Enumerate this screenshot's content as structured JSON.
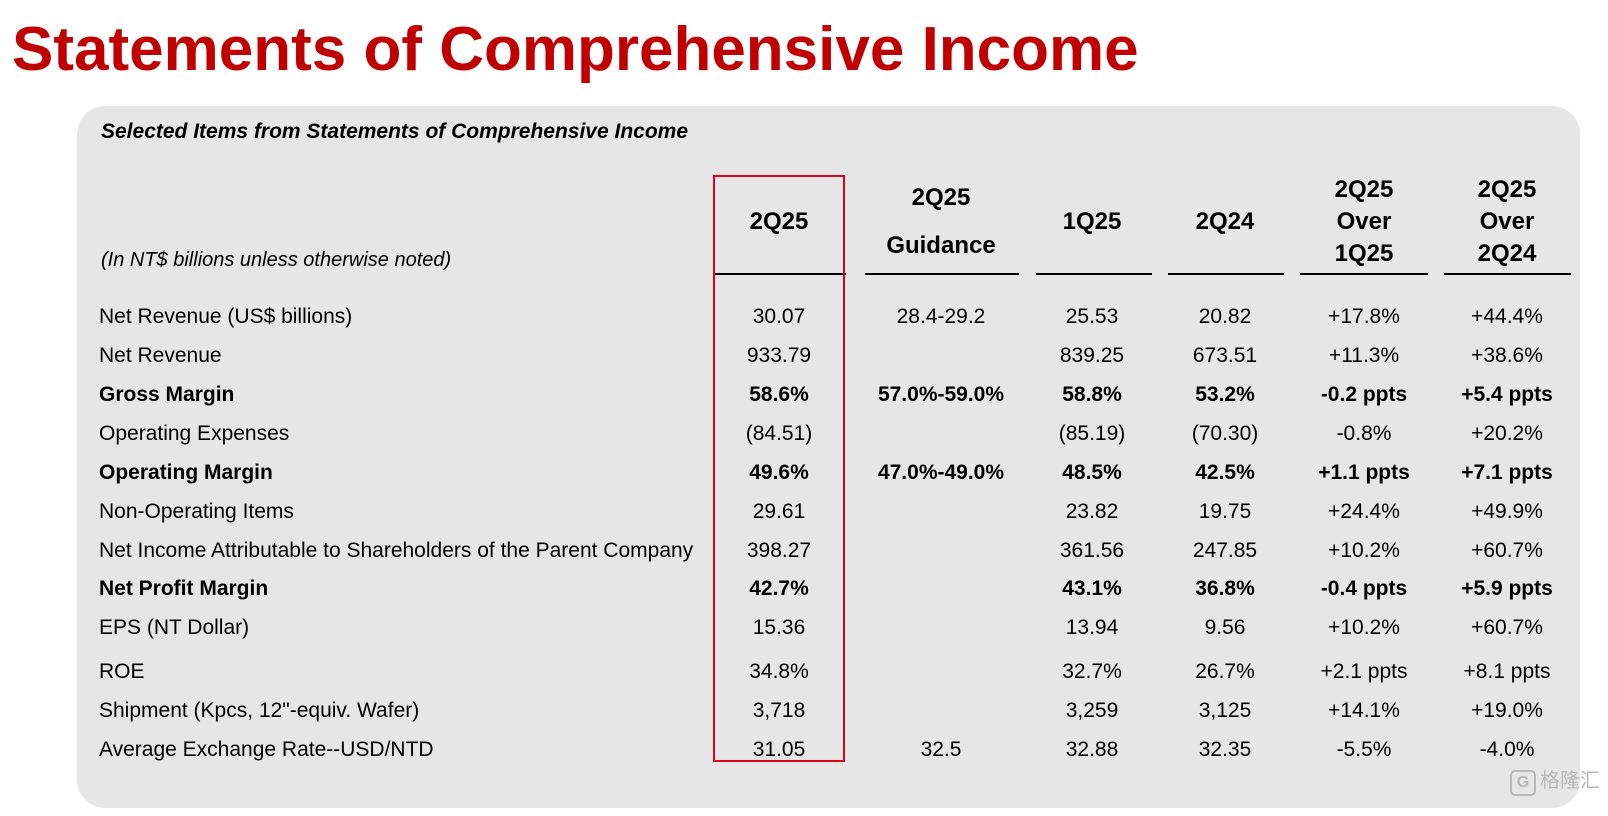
{
  "title": "Statements of Comprehensive Income",
  "subtitle": "Selected Items from Statements of Comprehensive Income",
  "units_note": "(In NT$ billions unless otherwise noted)",
  "columns": [
    {
      "lines": [
        "2Q25"
      ]
    },
    {
      "lines": [
        "2Q25",
        "Guidance"
      ]
    },
    {
      "lines": [
        "1Q25"
      ]
    },
    {
      "lines": [
        "2Q24"
      ]
    },
    {
      "lines": [
        "2Q25",
        "Over",
        "1Q25"
      ]
    },
    {
      "lines": [
        "2Q25",
        "Over",
        "2Q24"
      ]
    }
  ],
  "rows": [
    {
      "label": "Net Revenue (US$ billions)",
      "bold": false,
      "values": [
        "30.07",
        "28.4-29.2",
        "25.53",
        "20.82",
        "+17.8%",
        "+44.4%"
      ]
    },
    {
      "label": "Net Revenue",
      "bold": false,
      "values": [
        "933.79",
        "",
        "839.25",
        "673.51",
        "+11.3%",
        "+38.6%"
      ]
    },
    {
      "label": "Gross Margin",
      "bold": true,
      "values": [
        "58.6%",
        "57.0%-59.0%",
        "58.8%",
        "53.2%",
        "-0.2 ppts",
        "+5.4 ppts"
      ]
    },
    {
      "label": "Operating Expenses",
      "bold": false,
      "values": [
        "(84.51)",
        "",
        "(85.19)",
        "(70.30)",
        "-0.8%",
        "+20.2%"
      ]
    },
    {
      "label": "Operating Margin",
      "bold": true,
      "values": [
        "49.6%",
        "47.0%-49.0%",
        "48.5%",
        "42.5%",
        "+1.1 ppts",
        "+7.1 ppts"
      ]
    },
    {
      "label": "Non-Operating Items",
      "bold": false,
      "values": [
        "29.61",
        "",
        "23.82",
        "19.75",
        "+24.4%",
        "+49.9%"
      ]
    },
    {
      "label": "Net Income Attributable to Shareholders of the Parent Company",
      "bold": false,
      "values": [
        "398.27",
        "",
        "361.56",
        "247.85",
        "+10.2%",
        "+60.7%"
      ]
    },
    {
      "label": "Net Profit Margin",
      "bold": true,
      "values": [
        "42.7%",
        "",
        "43.1%",
        "36.8%",
        "-0.4 ppts",
        "+5.9 ppts"
      ]
    },
    {
      "label": "EPS (NT Dollar)",
      "bold": false,
      "values": [
        "15.36",
        "",
        "13.94",
        "9.56",
        "+10.2%",
        "+60.7%"
      ]
    },
    {
      "label": "ROE",
      "bold": false,
      "values": [
        "34.8%",
        "",
        "32.7%",
        "26.7%",
        "+2.1 ppts",
        "+8.1 ppts"
      ]
    },
    {
      "label": "Shipment (Kpcs, 12\"-equiv. Wafer)",
      "bold": false,
      "values": [
        "3,718",
        "",
        "3,259",
        "3,125",
        "+14.1%",
        "+19.0%"
      ]
    },
    {
      "label": "Average Exchange Rate--USD/NTD",
      "bold": false,
      "values": [
        "31.05",
        "32.5",
        "32.88",
        "32.35",
        "-5.5%",
        "-4.0%"
      ]
    }
  ],
  "watermark": "格隆汇",
  "colors": {
    "title": "#c00000",
    "highlight_border": "#e0001a",
    "panel": "#e6e6e6"
  }
}
